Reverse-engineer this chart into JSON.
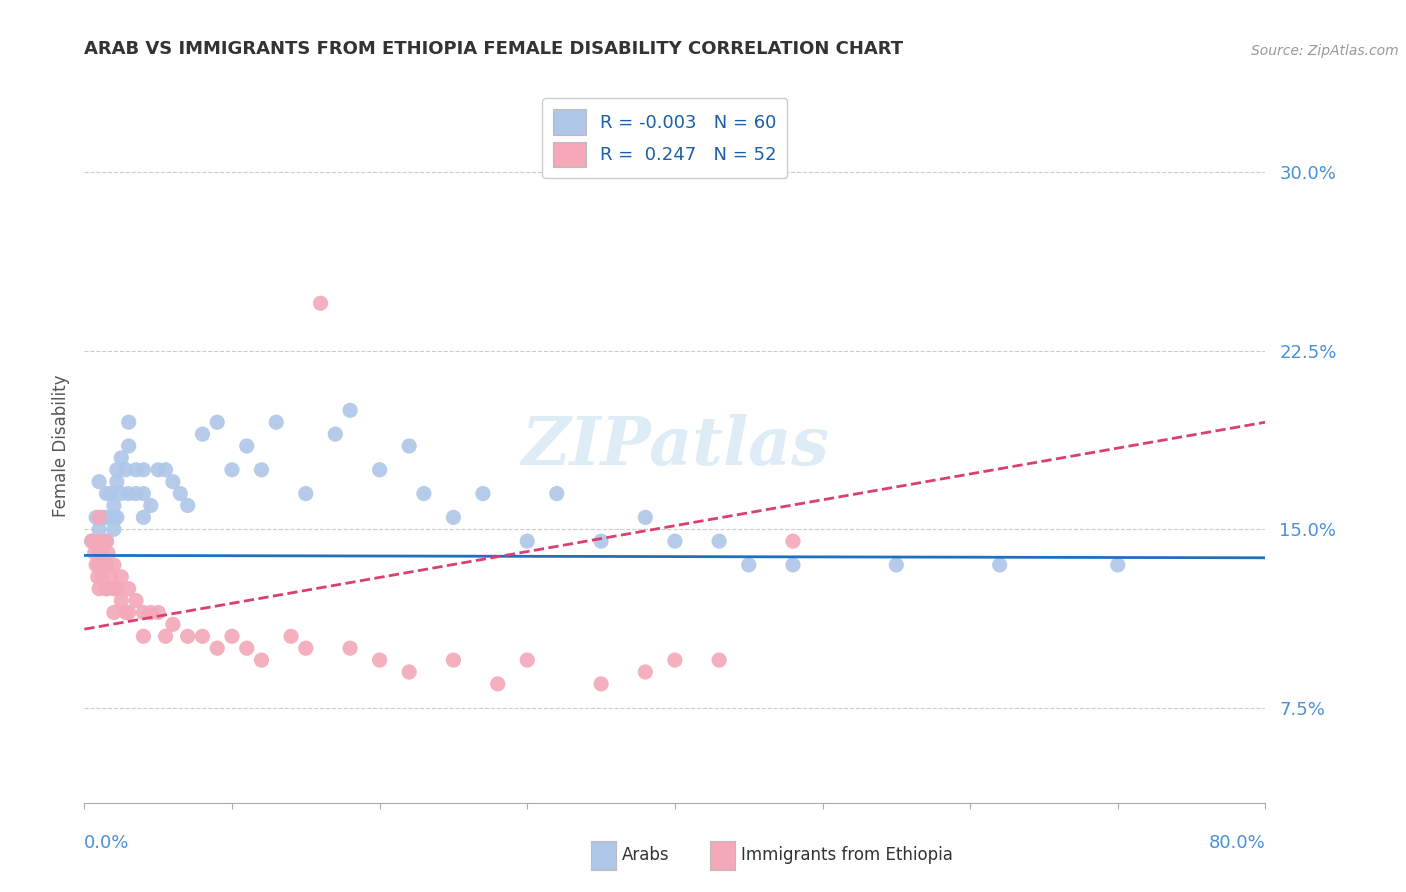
{
  "title": "ARAB VS IMMIGRANTS FROM ETHIOPIA FEMALE DISABILITY CORRELATION CHART",
  "source": "Source: ZipAtlas.com",
  "ylabel": "Female Disability",
  "ytick_labels": [
    "7.5%",
    "15.0%",
    "22.5%",
    "30.0%"
  ],
  "ytick_values": [
    0.075,
    0.15,
    0.225,
    0.3
  ],
  "xlim": [
    0.0,
    0.8
  ],
  "ylim": [
    0.035,
    0.335
  ],
  "legend_arab_R": "-0.003",
  "legend_arab_N": "60",
  "legend_eth_R": "0.247",
  "legend_eth_N": "52",
  "arab_color": "#aec6e8",
  "eth_color": "#f4a8b8",
  "arab_line_color": "#1f6fbf",
  "eth_line_color": "#d94070",
  "watermark": "ZIPatlas",
  "arab_scatter_x": [
    0.005,
    0.008,
    0.01,
    0.01,
    0.01,
    0.012,
    0.015,
    0.015,
    0.015,
    0.015,
    0.015,
    0.018,
    0.02,
    0.02,
    0.02,
    0.022,
    0.022,
    0.022,
    0.025,
    0.025,
    0.028,
    0.03,
    0.03,
    0.03,
    0.035,
    0.035,
    0.04,
    0.04,
    0.04,
    0.045,
    0.05,
    0.055,
    0.06,
    0.065,
    0.07,
    0.08,
    0.09,
    0.1,
    0.11,
    0.12,
    0.13,
    0.15,
    0.17,
    0.18,
    0.2,
    0.22,
    0.23,
    0.25,
    0.27,
    0.3,
    0.32,
    0.35,
    0.38,
    0.4,
    0.43,
    0.45,
    0.48,
    0.55,
    0.62,
    0.7
  ],
  "arab_scatter_y": [
    0.145,
    0.155,
    0.17,
    0.15,
    0.14,
    0.155,
    0.165,
    0.155,
    0.145,
    0.135,
    0.125,
    0.165,
    0.16,
    0.155,
    0.15,
    0.175,
    0.17,
    0.155,
    0.18,
    0.165,
    0.175,
    0.195,
    0.185,
    0.165,
    0.175,
    0.165,
    0.175,
    0.165,
    0.155,
    0.16,
    0.175,
    0.175,
    0.17,
    0.165,
    0.16,
    0.19,
    0.195,
    0.175,
    0.185,
    0.175,
    0.195,
    0.165,
    0.19,
    0.2,
    0.175,
    0.185,
    0.165,
    0.155,
    0.165,
    0.145,
    0.165,
    0.145,
    0.155,
    0.145,
    0.145,
    0.135,
    0.135,
    0.135,
    0.135,
    0.135
  ],
  "eth_scatter_x": [
    0.005,
    0.007,
    0.008,
    0.009,
    0.01,
    0.01,
    0.01,
    0.01,
    0.012,
    0.012,
    0.014,
    0.015,
    0.015,
    0.015,
    0.016,
    0.018,
    0.02,
    0.02,
    0.02,
    0.022,
    0.025,
    0.025,
    0.028,
    0.03,
    0.03,
    0.035,
    0.04,
    0.04,
    0.045,
    0.05,
    0.055,
    0.06,
    0.07,
    0.08,
    0.09,
    0.1,
    0.11,
    0.12,
    0.14,
    0.15,
    0.16,
    0.18,
    0.2,
    0.22,
    0.25,
    0.28,
    0.3,
    0.35,
    0.38,
    0.4,
    0.43,
    0.48
  ],
  "eth_scatter_y": [
    0.145,
    0.14,
    0.135,
    0.13,
    0.155,
    0.145,
    0.135,
    0.125,
    0.14,
    0.13,
    0.135,
    0.145,
    0.135,
    0.125,
    0.14,
    0.13,
    0.135,
    0.125,
    0.115,
    0.125,
    0.13,
    0.12,
    0.115,
    0.125,
    0.115,
    0.12,
    0.115,
    0.105,
    0.115,
    0.115,
    0.105,
    0.11,
    0.105,
    0.105,
    0.1,
    0.105,
    0.1,
    0.095,
    0.105,
    0.1,
    0.245,
    0.1,
    0.095,
    0.09,
    0.095,
    0.085,
    0.095,
    0.085,
    0.09,
    0.095,
    0.095,
    0.145
  ],
  "arab_line_x": [
    0.0,
    0.8
  ],
  "arab_line_y": [
    0.139,
    0.138
  ],
  "eth_line_x": [
    0.0,
    0.8
  ],
  "eth_line_y": [
    0.108,
    0.195
  ]
}
